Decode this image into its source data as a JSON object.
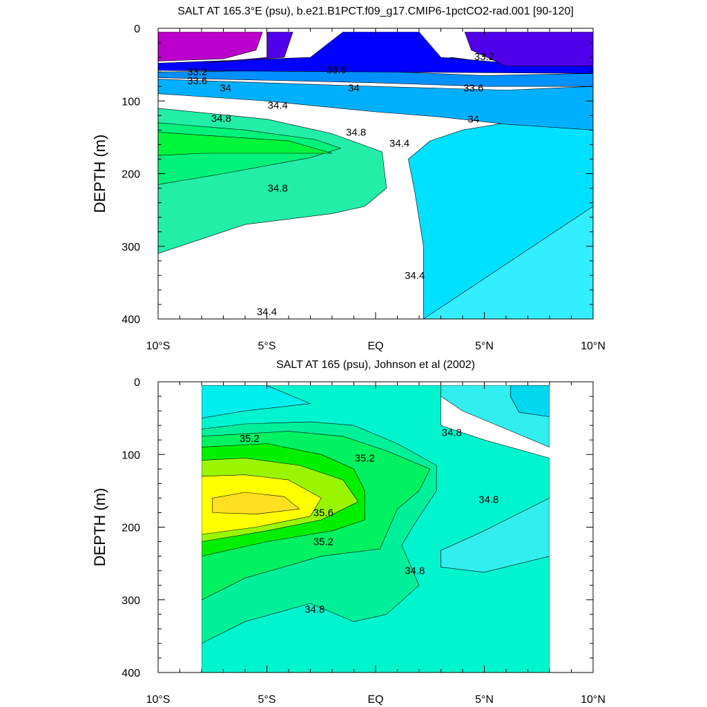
{
  "chart_data": [
    {
      "type": "heatmap",
      "title": "SALT AT 165.3°E (psu), b.e21.B1PCT.f09_g17.CMIP6-1pctCO2-rad.001 [90-120]",
      "ylabel": "DEPTH (m)",
      "xlim": [
        -10,
        10
      ],
      "ylim": [
        400,
        0
      ],
      "xticks": [
        {
          "value": -10,
          "label": "10°S"
        },
        {
          "value": -5,
          "label": "5°S"
        },
        {
          "value": 0,
          "label": "EQ"
        },
        {
          "value": 5,
          "label": "5°N"
        },
        {
          "value": 10,
          "label": "10°N"
        }
      ],
      "yticks": [
        {
          "value": 0,
          "label": "0"
        },
        {
          "value": 100,
          "label": "100"
        },
        {
          "value": 200,
          "label": "200"
        },
        {
          "value": 300,
          "label": "300"
        },
        {
          "value": 400,
          "label": "400"
        }
      ],
      "data_extent": {
        "x": [
          -10,
          10
        ],
        "y": [
          5,
          400
        ]
      },
      "fills": [
        {
          "level": "34.4-34.6",
          "color": "#33eeff",
          "region": [
            [
              -10,
              400
            ],
            [
              10,
              400
            ],
            [
              10,
              245
            ],
            [
              2.2,
              245
            ],
            [
              2.2,
              400
            ]
          ]
        },
        {
          "level": "34.2-34.4",
          "color": "#00e1ff",
          "region": [
            [
              2.2,
              400
            ],
            [
              2.2,
              300
            ],
            [
              1.8,
              225
            ],
            [
              1.5,
              180
            ],
            [
              2.5,
              155
            ],
            [
              4,
              140
            ],
            [
              7,
              125
            ],
            [
              10,
              120
            ],
            [
              10,
              245
            ]
          ]
        },
        {
          "level": "34.6-34.8",
          "color": "#22eea8",
          "region": [
            [
              -10,
              310
            ],
            [
              -6,
              270
            ],
            [
              -2,
              255
            ],
            [
              -0.5,
              245
            ],
            [
              0.5,
              220
            ],
            [
              0.3,
              170
            ],
            [
              -2,
              145
            ],
            [
              -5,
              125
            ],
            [
              -10,
              110
            ],
            [
              -10,
              310
            ]
          ]
        },
        {
          "level": "34.8-35.0",
          "color": "#00f27a",
          "region": [
            [
              -10,
              215
            ],
            [
              -7,
              200
            ],
            [
              -3,
              178
            ],
            [
              -1.6,
              165
            ],
            [
              -2.8,
              153
            ],
            [
              -6,
              140
            ],
            [
              -10,
              130
            ]
          ]
        },
        {
          "level": "35.0-35.2",
          "color": "#00f63a",
          "region": [
            [
              -10,
              175
            ],
            [
              -8,
              172
            ],
            [
              -2,
              172
            ],
            [
              -4,
              155
            ],
            [
              -10,
              143
            ]
          ]
        },
        {
          "level": "33.8-34.0",
          "color": "#00b0ff",
          "region": [
            [
              -10,
              70
            ],
            [
              0,
              80
            ],
            [
              6,
              85
            ],
            [
              10,
              80
            ],
            [
              10,
              140
            ],
            [
              6,
              132
            ],
            [
              3,
              122
            ],
            [
              0,
              115
            ],
            [
              -5,
              100
            ],
            [
              -10,
              90
            ]
          ]
        },
        {
          "level": "33.6-33.8",
          "color": "#0090ff",
          "region": [
            [
              -10,
              60
            ],
            [
              -4,
              58
            ],
            [
              1,
              60
            ],
            [
              5,
              65
            ],
            [
              10,
              62
            ],
            [
              10,
              80
            ],
            [
              5,
              80
            ],
            [
              0,
              75
            ],
            [
              -10,
              68
            ]
          ]
        },
        {
          "level": "33.4-33.6",
          "color": "#0060ff",
          "region": [
            [
              3.5,
              40
            ],
            [
              6,
              50
            ],
            [
              10,
              50
            ],
            [
              10,
              62
            ],
            [
              5,
              60
            ],
            [
              2.5,
              45
            ]
          ]
        },
        {
          "level": "33.2-33.4",
          "color": "#0000ff",
          "region": [
            [
              -10,
              48
            ],
            [
              -3,
              40
            ],
            [
              -1.5,
              5
            ],
            [
              2,
              5
            ],
            [
              3,
              40
            ],
            [
              7,
              50
            ],
            [
              10,
              50
            ],
            [
              10,
              62
            ],
            [
              -10,
              58
            ]
          ]
        },
        {
          "level": "33.0-33.2",
          "color": "#5000e8",
          "region": [
            [
              -5,
              5
            ],
            [
              -3.8,
              5
            ],
            [
              -4.2,
              40
            ],
            [
              -8,
              48
            ],
            [
              -5,
              40
            ]
          ]
        },
        {
          "level": "<33.0",
          "color": "#bb00cc",
          "region": [
            [
              -10,
              5
            ],
            [
              -5.2,
              5
            ],
            [
              -5.5,
              30
            ],
            [
              -7,
              42
            ],
            [
              -10,
              45
            ]
          ]
        },
        {
          "level": "33.0-33.2 north",
          "color": "#5000e8",
          "region": [
            [
              4.1,
              5
            ],
            [
              10,
              5
            ],
            [
              10,
              52
            ],
            [
              6,
              52
            ],
            [
              4.4,
              30
            ]
          ]
        }
      ],
      "contour_labels": [
        {
          "x": -8.2,
          "y": 60,
          "text": "33.2"
        },
        {
          "x": -8.2,
          "y": 72,
          "text": "33.6"
        },
        {
          "x": -6.9,
          "y": 82,
          "text": "34"
        },
        {
          "x": -4.5,
          "y": 106,
          "text": "34.4"
        },
        {
          "x": -7.1,
          "y": 124,
          "text": "34.8"
        },
        {
          "x": -0.9,
          "y": 143,
          "text": "34.8"
        },
        {
          "x": 1.1,
          "y": 158,
          "text": "34.4"
        },
        {
          "x": -4.5,
          "y": 220,
          "text": "34.8"
        },
        {
          "x": -5.0,
          "y": 390,
          "text": "34.4"
        },
        {
          "x": 1.8,
          "y": 340,
          "text": "34.4"
        },
        {
          "x": -1.8,
          "y": 57,
          "text": "33.6"
        },
        {
          "x": -1.0,
          "y": 82,
          "text": "34"
        },
        {
          "x": 5.0,
          "y": 39,
          "text": "33.2"
        },
        {
          "x": 4.5,
          "y": 82,
          "text": "33.6"
        },
        {
          "x": 4.5,
          "y": 125,
          "text": "34"
        }
      ]
    },
    {
      "type": "heatmap",
      "title": "SALT AT 165 (psu), Johnson et al (2002)",
      "ylabel": "DEPTH (m)",
      "xlim": [
        -10,
        10
      ],
      "ylim": [
        400,
        0
      ],
      "xticks": [
        {
          "value": -10,
          "label": "10°S"
        },
        {
          "value": -5,
          "label": "5°S"
        },
        {
          "value": 0,
          "label": "EQ"
        },
        {
          "value": 5,
          "label": "5°N"
        },
        {
          "value": 10,
          "label": "10°N"
        }
      ],
      "yticks": [
        {
          "value": 0,
          "label": "0"
        },
        {
          "value": 100,
          "label": "100"
        },
        {
          "value": 200,
          "label": "200"
        },
        {
          "value": 300,
          "label": "300"
        },
        {
          "value": 400,
          "label": "400"
        }
      ],
      "data_extent": {
        "x": [
          -8,
          8
        ],
        "y": [
          5,
          400
        ]
      },
      "fills": [
        {
          "level": "34.6-34.8",
          "color": "#00f5cf",
          "region": [
            [
              -8,
              400
            ],
            [
              8,
              400
            ],
            [
              8,
              240
            ],
            [
              5,
              260
            ],
            [
              3,
              255
            ],
            [
              3,
              232
            ],
            [
              5,
              215
            ],
            [
              8,
              162
            ],
            [
              8,
              105
            ],
            [
              5,
              80
            ],
            [
              3,
              60
            ],
            [
              3,
              5
            ],
            [
              -8,
              5
            ]
          ]
        },
        {
          "level": "34.4-34.6",
          "color": "#00eeee",
          "region": [
            [
              -8,
              5
            ],
            [
              -5,
              5
            ],
            [
              -3,
              30
            ],
            [
              -6,
              40
            ],
            [
              -8,
              50
            ]
          ]
        },
        {
          "level": "34.4-34.6 north",
          "color": "#33eeee",
          "region": [
            [
              3,
              5
            ],
            [
              8,
              5
            ],
            [
              8,
              90
            ],
            [
              6,
              65
            ],
            [
              4,
              40
            ],
            [
              3,
              20
            ]
          ]
        },
        {
          "level": "34.2-34.4",
          "color": "#00d8f0",
          "region": [
            [
              6.2,
              5
            ],
            [
              8,
              5
            ],
            [
              8,
              48
            ],
            [
              6.6,
              42
            ],
            [
              6.2,
              20
            ]
          ]
        },
        {
          "level": "34.4-34.6 east",
          "color": "#33eeee",
          "region": [
            [
              3,
              255
            ],
            [
              3,
              232
            ],
            [
              5,
              205
            ],
            [
              8,
              160
            ],
            [
              8,
              240
            ],
            [
              5,
              262
            ]
          ]
        },
        {
          "level": "34.8-35.0",
          "color": "#00f09a",
          "region": [
            [
              -8,
              360
            ],
            [
              -6,
              330
            ],
            [
              -3,
              305
            ],
            [
              -1,
              330
            ],
            [
              0.5,
              320
            ],
            [
              2,
              280
            ],
            [
              1.2,
              225
            ],
            [
              1.8,
              195
            ],
            [
              2.8,
              150
            ],
            [
              2.8,
              115
            ],
            [
              1,
              85
            ],
            [
              -1,
              60
            ],
            [
              -3,
              55
            ],
            [
              -6,
              58
            ],
            [
              -8,
              65
            ]
          ]
        },
        {
          "level": "35.0-35.2",
          "color": "#00f260",
          "region": [
            [
              -8,
              300
            ],
            [
              -6,
              270
            ],
            [
              -2.5,
              240
            ],
            [
              0.2,
              230
            ],
            [
              1,
              175
            ],
            [
              2,
              150
            ],
            [
              2.5,
              120
            ],
            [
              0.5,
              95
            ],
            [
              -1.5,
              75
            ],
            [
              -4,
              68
            ],
            [
              -8,
              75
            ]
          ]
        },
        {
          "level": "35.2-35.4",
          "color": "#00f000",
          "region": [
            [
              -8,
              240
            ],
            [
              -5,
              220
            ],
            [
              -2,
              205
            ],
            [
              -0.5,
              190
            ],
            [
              -0.5,
              150
            ],
            [
              -1,
              120
            ],
            [
              -2.5,
              100
            ],
            [
              -5,
              85
            ],
            [
              -8,
              90
            ]
          ]
        },
        {
          "level": "35.4-35.6",
          "color": "#99f600",
          "region": [
            [
              -8,
              220
            ],
            [
              -5,
              205
            ],
            [
              -2.5,
              190
            ],
            [
              -0.8,
              165
            ],
            [
              -1.5,
              135
            ],
            [
              -3.5,
              115
            ],
            [
              -6,
              105
            ],
            [
              -8,
              108
            ]
          ]
        },
        {
          "level": "35.6-35.8",
          "color": "#ffff00",
          "region": [
            [
              -8,
              210
            ],
            [
              -5.5,
              200
            ],
            [
              -3,
              185
            ],
            [
              -2.5,
              160
            ],
            [
              -4,
              135
            ],
            [
              -6,
              128
            ],
            [
              -8,
              130
            ]
          ]
        },
        {
          "level": ">35.8",
          "color": "#ffe020",
          "region": [
            [
              -7.5,
              180
            ],
            [
              -5.5,
              182
            ],
            [
              -3.5,
              175
            ],
            [
              -4.2,
              158
            ],
            [
              -6,
              152
            ],
            [
              -7.5,
              160
            ]
          ]
        }
      ],
      "contour_labels": [
        {
          "x": -5.8,
          "y": 78,
          "text": "35.2"
        },
        {
          "x": -0.5,
          "y": 105,
          "text": "35.2"
        },
        {
          "x": 3.5,
          "y": 70,
          "text": "34.8"
        },
        {
          "x": -2.4,
          "y": 180,
          "text": "35.6"
        },
        {
          "x": -2.4,
          "y": 220,
          "text": "35.2"
        },
        {
          "x": 5.2,
          "y": 162,
          "text": "34.8"
        },
        {
          "x": 1.8,
          "y": 260,
          "text": "34.8"
        },
        {
          "x": -2.8,
          "y": 313,
          "text": "34.8"
        }
      ]
    }
  ]
}
